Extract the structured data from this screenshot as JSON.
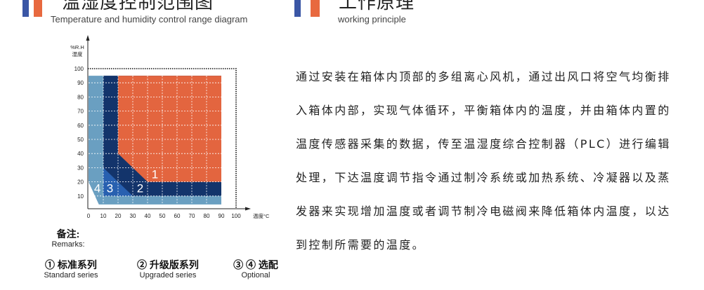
{
  "left_header": {
    "title_cn": "温湿度控制范围图",
    "title_en": "Temperature and humidity control range diagram"
  },
  "right_header": {
    "title_cn": "工作原理",
    "title_en": "working principle"
  },
  "colors": {
    "flag_blue": "#3a56a5",
    "flag_orange": "#e8693f",
    "orange": "#e3653f",
    "navy": "#13346b",
    "medium_blue": "#2860b0",
    "light_blue": "#6a9fc1"
  },
  "chart_data": {
    "type": "area",
    "ylabel": "%R.H\n湿度",
    "ylabel_lines": [
      "%R.H",
      "湿度"
    ],
    "xlabel": "温度°C",
    "xlim": [
      0,
      100
    ],
    "ylim": [
      0,
      100
    ],
    "xticks": [
      "0",
      "10",
      "20",
      "30",
      "40",
      "50",
      "60",
      "70",
      "80",
      "90",
      "100"
    ],
    "yticks": [
      "10",
      "20",
      "30",
      "40",
      "50",
      "60",
      "70",
      "80",
      "90",
      "100"
    ],
    "grid": true,
    "regions": [
      {
        "label": "4",
        "color": "#6a9fc1",
        "polygon": [
          [
            0,
            95
          ],
          [
            90,
            95
          ],
          [
            90,
            4
          ],
          [
            7,
            4
          ],
          [
            0,
            20
          ]
        ]
      },
      {
        "label": "2",
        "color": "#13346b",
        "polygon": [
          [
            10,
            95
          ],
          [
            90,
            95
          ],
          [
            90,
            10
          ],
          [
            10,
            10
          ]
        ]
      },
      {
        "label": "1",
        "color": "#e3653f",
        "polygon": [
          [
            20,
            95
          ],
          [
            90,
            95
          ],
          [
            90,
            20
          ],
          [
            40,
            20
          ],
          [
            20,
            40
          ]
        ]
      },
      {
        "label": "3",
        "color": "#2860b0",
        "polygon": [
          [
            10,
            30
          ],
          [
            10,
            10
          ],
          [
            30,
            10
          ]
        ]
      }
    ],
    "region_labels": [
      {
        "text": "1",
        "x": 45,
        "y": 26
      },
      {
        "text": "2",
        "x": 35,
        "y": 16
      },
      {
        "text": "3",
        "x": 14.5,
        "y": 16
      },
      {
        "text": "4",
        "x": 6,
        "y": 16
      }
    ]
  },
  "remarks": {
    "title_cn": "备注:",
    "title_en": "Remarks:",
    "items": [
      {
        "cn": "① 标准系列",
        "en": "Standard series"
      },
      {
        "cn": "② 升级版系列",
        "en": "Upgraded series"
      },
      {
        "cn": "③ ④ 选配",
        "en": "Optional"
      }
    ]
  },
  "principle": {
    "lines": [
      "通过安装在箱体内顶部的多组离心风机，通过出风口将空气均衡排",
      "入箱体内部，实现气体循环，平衡箱体内的温度，并由箱体内置的",
      "温度传感器采集的数据，传至温湿度综合控制器（PLC）进行编辑",
      "处理，下达温度调节指令通过制冷系统或加热系统、冷凝器以及蒸",
      "发器来实现增加温度或者调节制冷电磁阀来降低箱体内温度，以达",
      "到控制所需要的温度。"
    ]
  }
}
